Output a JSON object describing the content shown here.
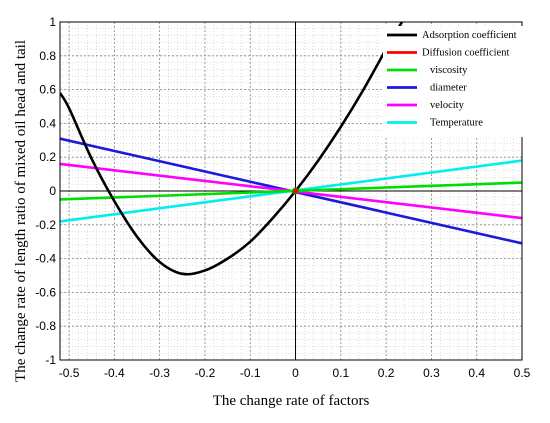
{
  "chart_data": {
    "type": "line",
    "xlabel": "The change rate of factors",
    "ylabel": "The change rate of length ratio of mixed oil head and tail",
    "xlim": [
      -0.52,
      0.5
    ],
    "ylim": [
      -1,
      1
    ],
    "xticks": [
      -0.5,
      -0.4,
      -0.3,
      -0.2,
      -0.1,
      0,
      0.1,
      0.2,
      0.3,
      0.4,
      0.5
    ],
    "yticks": [
      -1,
      -0.8,
      -0.6,
      -0.4,
      -0.2,
      0,
      0.2,
      0.4,
      0.6,
      0.8,
      1
    ],
    "xtick_labels": [
      "-0.5",
      "-0.4",
      "-0.3",
      "-0.2",
      "-0.1",
      "0",
      "0.1",
      "0.2",
      "0.3",
      "0.4",
      "0.5"
    ],
    "ytick_labels": [
      "-1",
      "-0.8",
      "-0.6",
      "-0.4",
      "-0.2",
      "0",
      "0.2",
      "0.4",
      "0.6",
      "0.8",
      "1"
    ],
    "grid": true,
    "minor_grid": true,
    "legend_position": "top-right",
    "series": [
      {
        "name": "Adsorption coefficient",
        "color": "#000000",
        "x": [
          -0.52,
          -0.5,
          -0.45,
          -0.4,
          -0.35,
          -0.3,
          -0.25,
          -0.2,
          -0.15,
          -0.1,
          -0.05,
          0,
          0.05,
          0.1,
          0.15,
          0.2,
          0.235
        ],
        "y": [
          0.58,
          0.49,
          0.19,
          -0.06,
          -0.27,
          -0.42,
          -0.49,
          -0.47,
          -0.4,
          -0.3,
          -0.16,
          0,
          0.18,
          0.38,
          0.6,
          0.84,
          1.0
        ]
      },
      {
        "name": "Diffusion coefficient",
        "color": "#ff0000",
        "x": [
          0
        ],
        "y": [
          0
        ]
      },
      {
        "name": "viscosity",
        "color": "#00dd00",
        "x": [
          -0.52,
          0.5
        ],
        "y": [
          -0.05,
          0.05
        ]
      },
      {
        "name": "diameter",
        "color": "#1a1adc",
        "x": [
          -0.52,
          0.5
        ],
        "y": [
          0.31,
          -0.31
        ]
      },
      {
        "name": "velocity",
        "color": "#ff00ff",
        "x": [
          -0.52,
          0.5
        ],
        "y": [
          0.16,
          -0.16
        ]
      },
      {
        "name": "Temperature",
        "color": "#00eeee",
        "x": [
          -0.52,
          0.5
        ],
        "y": [
          -0.18,
          0.18
        ]
      }
    ]
  }
}
